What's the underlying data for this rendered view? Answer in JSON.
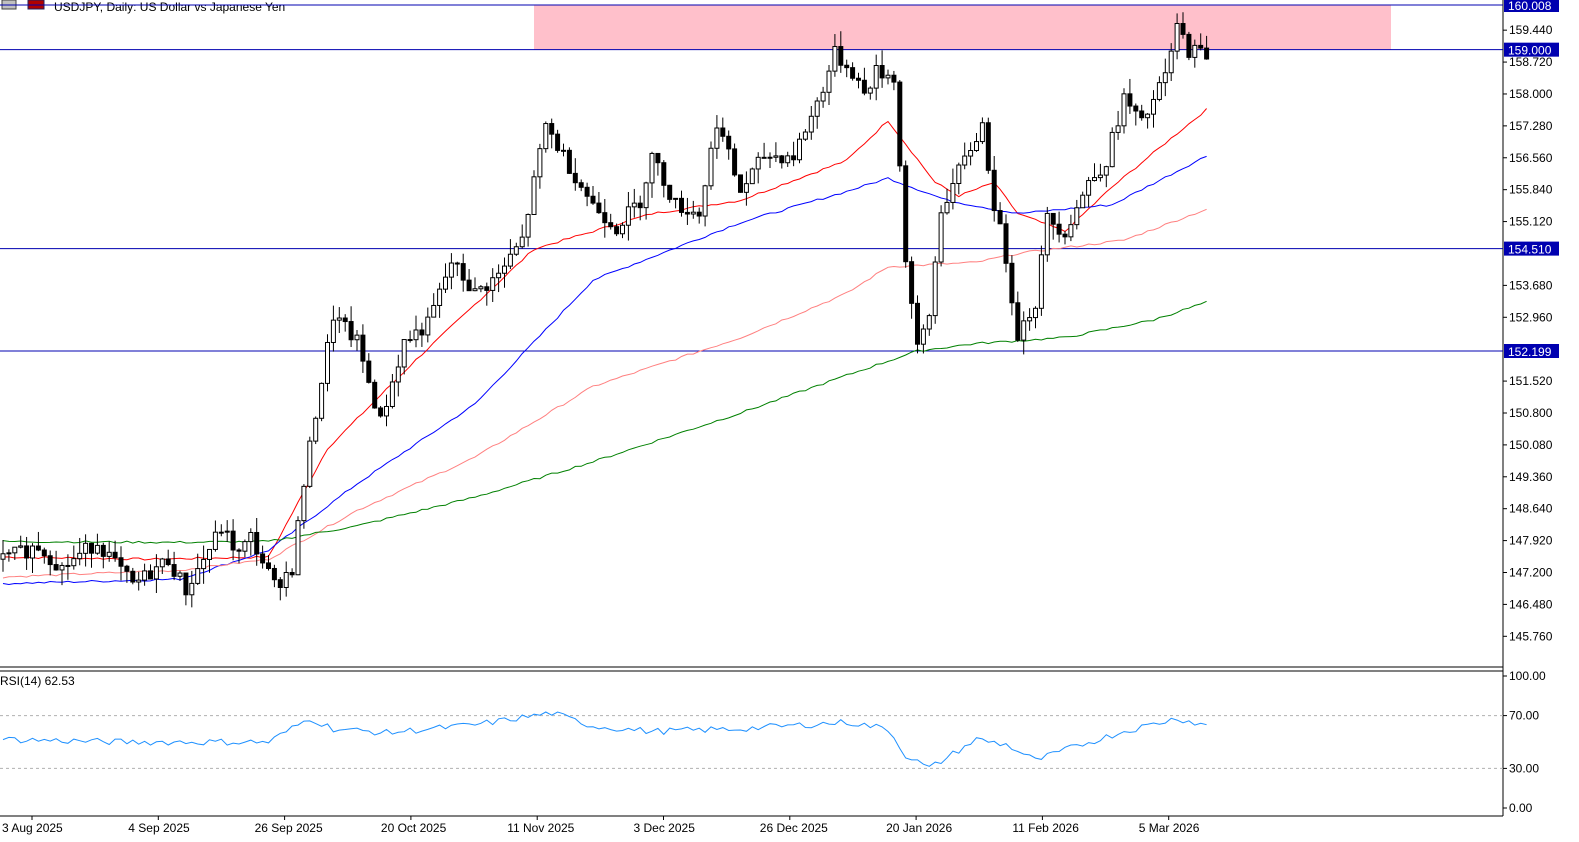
{
  "header": {
    "symbol_title": "USDJPY, Daily:  US Dollar vs Japanese Yen"
  },
  "rsi": {
    "label": "RSI(14) 62.53",
    "ticks": [
      "100.00",
      "70.00",
      "30.00",
      "0.00"
    ],
    "levels": [
      70,
      30
    ],
    "color": "#1e90ff"
  },
  "colors": {
    "hline": "#0000b0",
    "zone": "#ffc0cb",
    "ema_fast": "#ff0000",
    "ema_mid": "#0000ff",
    "ema_slow": "#ff8080",
    "ema_200": "#008000",
    "candle": "#000000",
    "price_tag_bg": "#0000b0"
  },
  "chart_data": {
    "type": "candlestick",
    "symbol": "USDJPY",
    "timeframe": "Daily",
    "y_ticks": [
      "159.440",
      "158.720",
      "158.000",
      "157.280",
      "156.560",
      "155.840",
      "155.120",
      "153.680",
      "152.960",
      "151.520",
      "150.800",
      "150.080",
      "149.360",
      "148.640",
      "147.920",
      "147.200",
      "146.480",
      "145.760"
    ],
    "ylim": [
      145.3,
      160.08
    ],
    "x_labels": [
      "3 Aug 2025",
      "4 Sep 2025",
      "26 Sep 2025",
      "20 Oct 2025",
      "11 Nov 2025",
      "3 Dec 2025",
      "26 Dec 2025",
      "20 Jan 2026",
      "11 Feb 2026",
      "5 Mar 2026"
    ],
    "horizontal_levels": [
      {
        "value": 160.008,
        "label": "160.008"
      },
      {
        "value": 159.0,
        "label": "159.000"
      },
      {
        "value": 154.51,
        "label": "154.510"
      },
      {
        "value": 152.199,
        "label": "152.199"
      }
    ],
    "resistance_zone": {
      "from": 159.0,
      "to": 160.008
    },
    "ema_series": [
      {
        "key": "ema_fast",
        "waypoints": [
          [
            0,
            147.55
          ],
          [
            25,
            147.5
          ],
          [
            45,
            147.55
          ],
          [
            55,
            150.0
          ],
          [
            70,
            152.0
          ],
          [
            90,
            154.5
          ],
          [
            110,
            155.3
          ],
          [
            125,
            155.6
          ],
          [
            143,
            156.5
          ],
          [
            150,
            157.4
          ],
          [
            158,
            156.0
          ],
          [
            162,
            155.7
          ],
          [
            168,
            156.0
          ],
          [
            172,
            155.3
          ],
          [
            180,
            154.9
          ],
          [
            188,
            155.9
          ],
          [
            198,
            157.0
          ],
          [
            204,
            157.65
          ]
        ]
      },
      {
        "key": "ema_mid",
        "waypoints": [
          [
            0,
            146.95
          ],
          [
            30,
            147.05
          ],
          [
            45,
            147.7
          ],
          [
            60,
            149.2
          ],
          [
            80,
            151.0
          ],
          [
            100,
            153.8
          ],
          [
            125,
            155.1
          ],
          [
            143,
            155.8
          ],
          [
            150,
            156.1
          ],
          [
            160,
            155.6
          ],
          [
            172,
            155.3
          ],
          [
            188,
            155.5
          ],
          [
            204,
            156.6
          ]
        ]
      },
      {
        "key": "ema_slow",
        "waypoints": [
          [
            0,
            147.1
          ],
          [
            30,
            147.25
          ],
          [
            45,
            147.5
          ],
          [
            60,
            148.6
          ],
          [
            80,
            149.8
          ],
          [
            100,
            151.4
          ],
          [
            125,
            152.5
          ],
          [
            143,
            153.5
          ],
          [
            150,
            154.1
          ],
          [
            165,
            154.2
          ],
          [
            172,
            154.4
          ],
          [
            190,
            154.7
          ],
          [
            204,
            155.4
          ]
        ]
      },
      {
        "key": "ema_200",
        "waypoints": [
          [
            0,
            147.9
          ],
          [
            30,
            147.88
          ],
          [
            45,
            147.9
          ],
          [
            60,
            148.25
          ],
          [
            80,
            148.9
          ],
          [
            100,
            149.7
          ],
          [
            125,
            150.8
          ],
          [
            143,
            151.65
          ],
          [
            155,
            152.2
          ],
          [
            165,
            152.37
          ],
          [
            180,
            152.5
          ],
          [
            195,
            152.9
          ],
          [
            204,
            153.3
          ]
        ]
      }
    ],
    "candles_path": [
      [
        0,
        147.5
      ],
      [
        6,
        147.8
      ],
      [
        10,
        147.3
      ],
      [
        16,
        147.9
      ],
      [
        22,
        146.9
      ],
      [
        28,
        147.5
      ],
      [
        31,
        146.8
      ],
      [
        37,
        148.2
      ],
      [
        40,
        147.6
      ],
      [
        42,
        148.0
      ],
      [
        46,
        146.9
      ],
      [
        49,
        147.3
      ],
      [
        51,
        149.2
      ],
      [
        53,
        150.8
      ],
      [
        56,
        153.0
      ],
      [
        60,
        152.4
      ],
      [
        64,
        150.6
      ],
      [
        68,
        152.4
      ],
      [
        72,
        152.8
      ],
      [
        76,
        154.2
      ],
      [
        80,
        153.5
      ],
      [
        84,
        153.9
      ],
      [
        88,
        154.7
      ],
      [
        92,
        157.3
      ],
      [
        95,
        156.6
      ],
      [
        100,
        155.5
      ],
      [
        104,
        155.0
      ],
      [
        108,
        155.6
      ],
      [
        110,
        156.6
      ],
      [
        114,
        155.5
      ],
      [
        118,
        155.3
      ],
      [
        121,
        157.4
      ],
      [
        125,
        155.8
      ],
      [
        129,
        156.6
      ],
      [
        134,
        156.6
      ],
      [
        138,
        157.8
      ],
      [
        141,
        158.9
      ],
      [
        144,
        158.5
      ],
      [
        146,
        158.0
      ],
      [
        148,
        158.5
      ],
      [
        151,
        158.4
      ],
      [
        153,
        154.3
      ],
      [
        155,
        152.2
      ],
      [
        157,
        153.0
      ],
      [
        159,
        155.4
      ],
      [
        163,
        156.5
      ],
      [
        166,
        157.3
      ],
      [
        168,
        155.5
      ],
      [
        170,
        154.3
      ],
      [
        172,
        152.6
      ],
      [
        175,
        153.3
      ],
      [
        177,
        155.2
      ],
      [
        180,
        154.9
      ],
      [
        184,
        156.0
      ],
      [
        187,
        156.5
      ],
      [
        190,
        157.9
      ],
      [
        193,
        157.3
      ],
      [
        197,
        158.4
      ],
      [
        199,
        159.5
      ],
      [
        201,
        159.0
      ],
      [
        204,
        158.9
      ]
    ]
  }
}
